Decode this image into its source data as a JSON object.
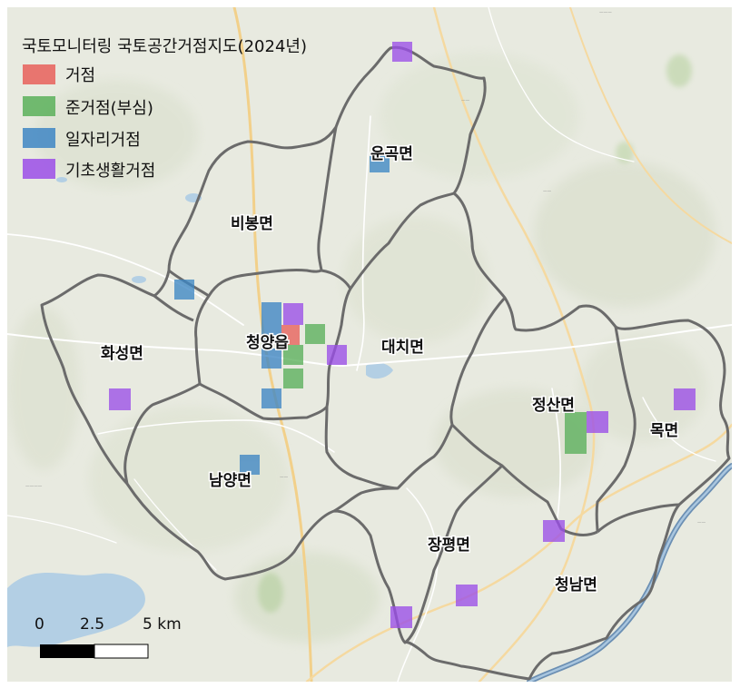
{
  "legend": {
    "title": "국토모니터링 국토공간거점지도(2024년)",
    "items": [
      {
        "label": "거점",
        "color": "#e8605a"
      },
      {
        "label": "준거점(부심)",
        "color": "#5bb05b"
      },
      {
        "label": "일자리거점",
        "color": "#3e86c4"
      },
      {
        "label": "기초생활거점",
        "color": "#9b4ee8"
      }
    ]
  },
  "districts": {
    "unmok": "운곡면",
    "bibong": "비봉면",
    "hwaseong": "화성면",
    "cheongyang": "청양읍",
    "daechi": "대치면",
    "namyang": "남양면",
    "jeongsan": "정산면",
    "mok": "목면",
    "jangpyeong": "장평면",
    "cheongnam": "청남면"
  },
  "scalebar": {
    "t0": "0",
    "t1": "2.5",
    "t2": "5 km"
  },
  "colors": {
    "boundary": "#6b6b6b",
    "river": "#6b8fb3",
    "background": "#e9ebe0"
  }
}
